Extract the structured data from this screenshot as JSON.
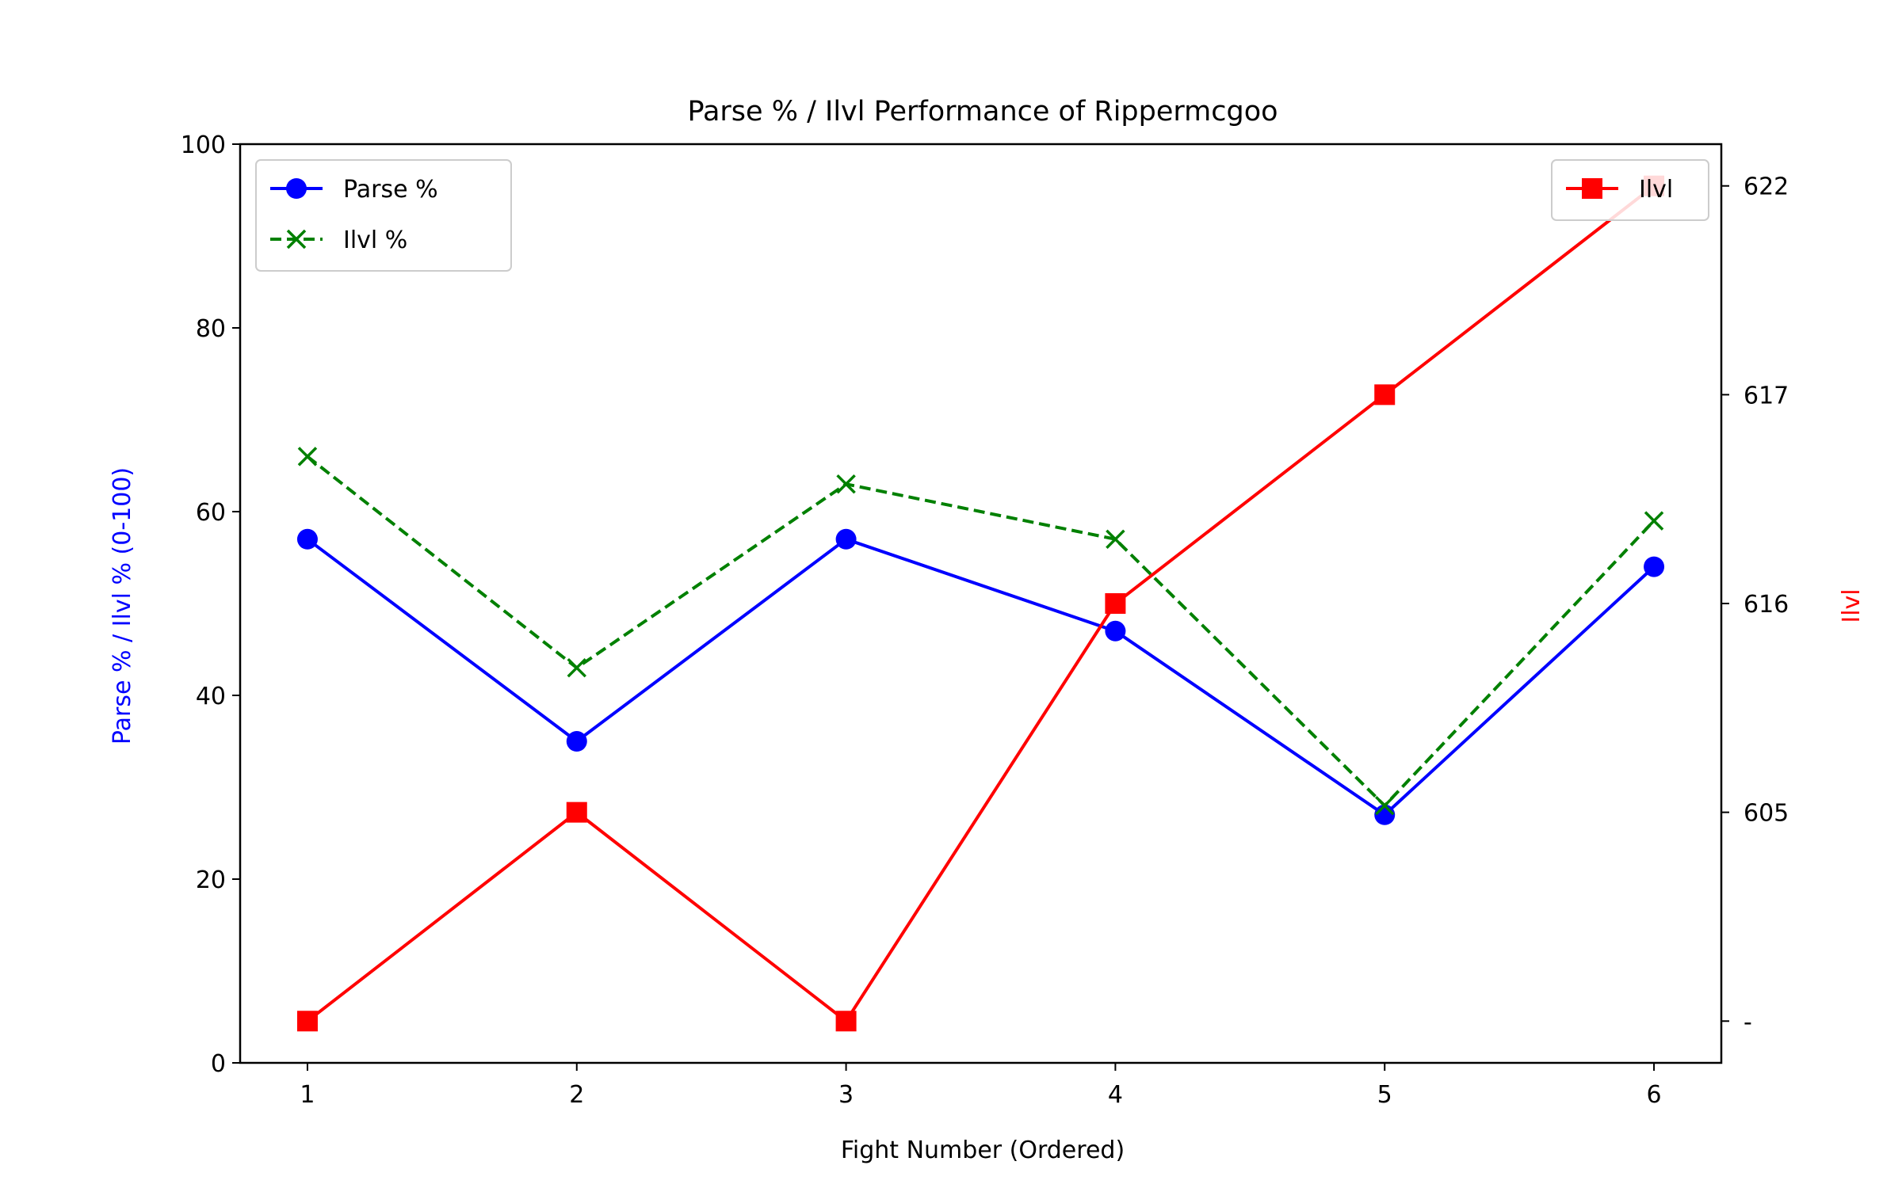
{
  "chart_data": {
    "type": "line",
    "title": "Parse % / Ilvl Performance of Rippermcgoo",
    "xlabel": "Fight Number (Ordered)",
    "ylabel_left": "Parse % / Ilvl % (0-100)",
    "ylabel_right": "Ilvl",
    "x": [
      1,
      2,
      3,
      4,
      5,
      6
    ],
    "x_ticks": [
      "1",
      "2",
      "3",
      "4",
      "5",
      "6"
    ],
    "xlim": [
      0.75,
      6.25
    ],
    "ylim_left": [
      0,
      100
    ],
    "y_ticks_left": [
      "0",
      "20",
      "40",
      "60",
      "80",
      "100"
    ],
    "right_axis": {
      "type": "categorical",
      "categories": [
        "-",
        "605",
        "616",
        "617",
        "622"
      ],
      "tick_labels": [
        "-",
        "605",
        "616",
        "617",
        "622"
      ],
      "limits": [
        -0.2,
        4.2
      ]
    },
    "series": [
      {
        "name": "Parse %",
        "axis": "left",
        "values": [
          57,
          35,
          57,
          47,
          27,
          54
        ],
        "color": "#0000ff",
        "marker": "circle",
        "linestyle": "solid"
      },
      {
        "name": "Ilvl %",
        "axis": "left",
        "values": [
          66,
          43,
          63,
          57,
          28,
          59
        ],
        "color": "#008000",
        "marker": "x",
        "linestyle": "dashed"
      },
      {
        "name": "Ilvl",
        "axis": "right",
        "values": [
          "-",
          "605",
          "-",
          "616",
          "617",
          "622"
        ],
        "color": "#ff0000",
        "marker": "square",
        "linestyle": "solid"
      }
    ],
    "legend_left": {
      "placement": "upper-left",
      "entries": [
        "Parse %",
        "Ilvl %"
      ]
    },
    "legend_right": {
      "placement": "upper-right",
      "entries": [
        "Ilvl"
      ]
    },
    "grid": false
  }
}
